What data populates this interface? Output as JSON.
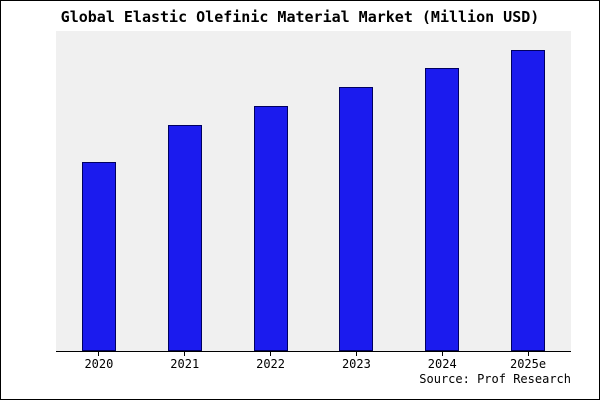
{
  "colors": {
    "bar_fill": "#1b1bee",
    "bar_border": "#000060",
    "plot_bg": "#f0f0f0",
    "axis": "#000000",
    "background": "#ffffff"
  },
  "source_text": "Source: Prof Research",
  "chart_data": {
    "type": "bar",
    "title": "Global Elastic Olefinic Material Market (Million USD)",
    "categories": [
      "2020",
      "2021",
      "2022",
      "2023",
      "2024",
      "2025e"
    ],
    "values": [
      590,
      705,
      765,
      825,
      885,
      940
    ],
    "xlabel": "",
    "ylabel": "",
    "ylim": [
      0,
      1000
    ],
    "grid": false,
    "legend": false,
    "y_axis_labels_visible": false,
    "annotation": "Source: Prof Research"
  }
}
